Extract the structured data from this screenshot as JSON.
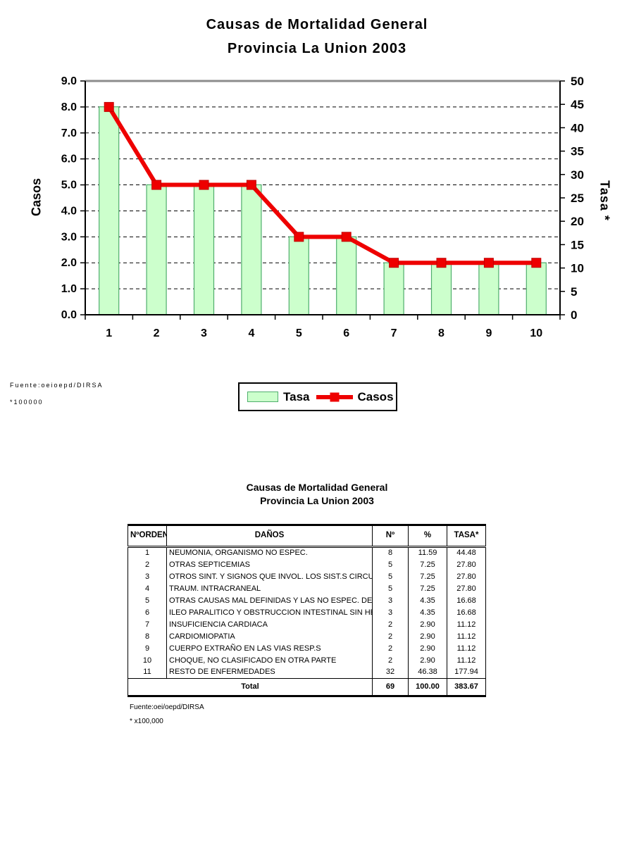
{
  "chart": {
    "title_line1": "Causas de Mortalidad General",
    "title_line2": "Provincia La Union 2003",
    "left_axis": {
      "label": "Casos",
      "min": 0,
      "max": 9,
      "tick_labels": [
        "0.0",
        "1.0",
        "2.0",
        "3.0",
        "4.0",
        "5.0",
        "6.0",
        "7.0",
        "8.0",
        "9.0"
      ]
    },
    "right_axis": {
      "label": "Tasa *",
      "min": 0,
      "max": 50,
      "tick_labels": [
        "0",
        "5",
        "10",
        "15",
        "20",
        "25",
        "30",
        "35",
        "40",
        "45",
        "50"
      ]
    },
    "legend": {
      "tasa_label": "Tasa",
      "casos_label": "Casos"
    },
    "source_line1": "Fuente:oeioepd/DIRSA",
    "source_line2": "*100000",
    "colors": {
      "bar_fill": "#ccffcc",
      "bar_border": "#4fae6d",
      "line_red": "#ee0000",
      "grid": "#000000",
      "axis": "#000000",
      "plot_top": "#8c8c8c"
    }
  },
  "chart_data": {
    "type": "bar+line",
    "title": "Causas de Mortalidad General",
    "subtitle": "Provincia La Union 2003",
    "categories": [
      "1",
      "2",
      "3",
      "4",
      "5",
      "6",
      "7",
      "8",
      "9",
      "10"
    ],
    "series": [
      {
        "name": "Tasa",
        "type": "bar",
        "axis": "right",
        "values": [
          44.48,
          27.8,
          27.8,
          27.8,
          16.68,
          16.68,
          11.12,
          11.12,
          11.12,
          11.12
        ]
      },
      {
        "name": "Casos",
        "type": "line",
        "axis": "left",
        "values": [
          8,
          5,
          5,
          5,
          3,
          3,
          2,
          2,
          2,
          2
        ]
      }
    ],
    "left_ylim": [
      0,
      9
    ],
    "right_ylim": [
      0,
      50
    ],
    "grid": true,
    "grid_style": "dashed-horizontal",
    "legend_position": "bottom"
  },
  "table": {
    "title_line1": "Causas de Mortalidad General",
    "title_line2": "Provincia La Union 2003",
    "headers": [
      "NºORDEN",
      "DAÑOS",
      "Nº",
      "%",
      "TASA*"
    ],
    "rows": [
      [
        "1",
        "NEUMONIA, ORGANISMO NO ESPEC.",
        "8",
        "11.59",
        "44.48"
      ],
      [
        "2",
        "OTRAS SEPTICEMIAS",
        "5",
        "7.25",
        "27.80"
      ],
      [
        "3",
        "OTROS SINT. Y SIGNOS QUE INVOL. LOS SIST.S CIRCUL.",
        "5",
        "7.25",
        "27.80"
      ],
      [
        "4",
        "TRAUM. INTRACRANEAL",
        "5",
        "7.25",
        "27.80"
      ],
      [
        "5",
        "OTRAS CAUSAS MAL DEFINIDAS Y LAS NO ESPEC. DE",
        "3",
        "4.35",
        "16.68"
      ],
      [
        "6",
        "ILEO PARALITICO Y OBSTRUCCION INTESTINAL SIN HER",
        "3",
        "4.35",
        "16.68"
      ],
      [
        "7",
        "INSUFICIENCIA CARDIACA",
        "2",
        "2.90",
        "11.12"
      ],
      [
        "8",
        "CARDIOMIOPATIA",
        "2",
        "2.90",
        "11.12"
      ],
      [
        "9",
        "CUERPO EXTRAÑO EN LAS VIAS RESP.S",
        "2",
        "2.90",
        "11.12"
      ],
      [
        "10",
        "CHOQUE, NO CLASIFICADO EN OTRA PARTE",
        "2",
        "2.90",
        "11.12"
      ],
      [
        "11",
        "RESTO DE ENFERMEDADES",
        "32",
        "46.38",
        "177.94"
      ]
    ],
    "total": {
      "label": "Total",
      "n": "69",
      "pct": "100.00",
      "tasa": "383.67"
    },
    "source_line1": "Fuente:oei/oepd/DIRSA",
    "source_line2": "* x100,000"
  }
}
